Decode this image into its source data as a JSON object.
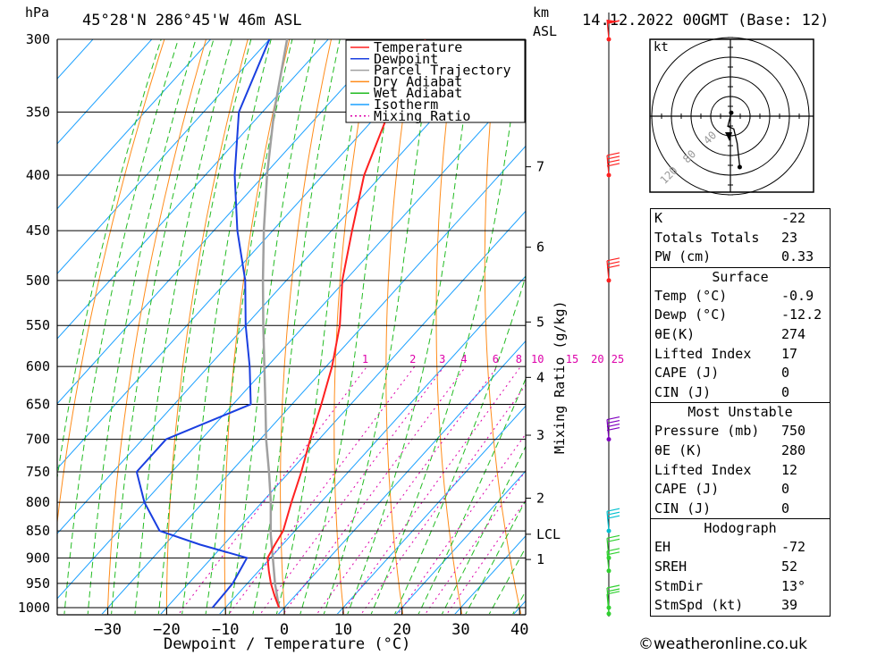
{
  "header": {
    "pressure_unit": "hPa",
    "location": "45°28'N 286°45'W 46m ASL",
    "height_unit": "km",
    "height_ref": "ASL",
    "datetime": "14.12.2022 00GMT (Base: 12)"
  },
  "footer": {
    "copyright": "©weatheronline.co.uk"
  },
  "colors": {
    "temperature": "#ff2020",
    "dewpoint": "#1a3fe0",
    "parcel": "#a0a0a0",
    "dry_adiabat": "#ff8c1a",
    "wet_adiabat": "#22bb22",
    "isotherm": "#1aa0ff",
    "mixing_ratio": "#dd00aa",
    "grid": "#000000",
    "wind_red": "#ff2020",
    "wind_purple": "#8000c0",
    "wind_cyan": "#00c0d0",
    "wind_green": "#30d030"
  },
  "chart_data": {
    "type": "skew-t",
    "xlabel": "Dewpoint / Temperature (°C)",
    "ylabel": "hPa",
    "x_ticks": [
      -30,
      -20,
      -10,
      0,
      10,
      20,
      30,
      40
    ],
    "pressure_levels": [
      300,
      350,
      400,
      450,
      500,
      550,
      600,
      650,
      700,
      750,
      800,
      850,
      900,
      950,
      1000
    ],
    "height_ticks": [
      {
        "label": "7",
        "pressure": 393
      },
      {
        "label": "6",
        "pressure": 466
      },
      {
        "label": "5",
        "pressure": 546
      },
      {
        "label": "4",
        "pressure": 614
      },
      {
        "label": "3",
        "pressure": 694
      },
      {
        "label": "2",
        "pressure": 793
      },
      {
        "label": "LCL",
        "pressure": 856
      },
      {
        "label": "1",
        "pressure": 903
      }
    ],
    "mixing_ratio_axis_label": "Mixing Ratio (g/kg)",
    "mixing_ratio_labels": [
      "1",
      "2",
      "3",
      "4",
      "6",
      "8",
      "10",
      "15",
      "20",
      "25"
    ],
    "mixing_ratio_values": [
      1,
      2,
      3,
      4,
      6,
      8,
      10,
      15,
      20,
      25
    ],
    "legend": [
      "Temperature",
      "Dewpoint",
      "Parcel Trajectory",
      "Dry Adiabat",
      "Wet Adiabat",
      "Isotherm",
      "Mixing Ratio"
    ],
    "temperature": {
      "name": "Temperature",
      "p": [
        1000,
        975,
        950,
        925,
        900,
        875,
        850,
        800,
        750,
        700,
        650,
        600,
        550,
        500,
        450,
        400,
        350,
        300
      ],
      "t": [
        -0.9,
        -3.5,
        -6.0,
        -8.3,
        -10.5,
        -11.3,
        -12.0,
        -15.0,
        -18.0,
        -21.5,
        -25.0,
        -29.0,
        -34.0,
        -40.5,
        -46.5,
        -53.0,
        -58.5,
        -63.5
      ]
    },
    "dewpoint": {
      "name": "Dewpoint",
      "p": [
        1000,
        950,
        900,
        875,
        850,
        800,
        750,
        700,
        650,
        600,
        550,
        500,
        450,
        400,
        350,
        300
      ],
      "t": [
        -12.2,
        -12.5,
        -14.0,
        -24.0,
        -33.0,
        -40.0,
        -46.0,
        -46.0,
        -37.0,
        -43.0,
        -50.0,
        -57.0,
        -66.0,
        -75.0,
        -84.0,
        -90.0
      ]
    },
    "parcel": {
      "name": "Parcel Trajectory",
      "p": [
        1000,
        950,
        900,
        856,
        800,
        750,
        700,
        650,
        600,
        550,
        500,
        450,
        400,
        350,
        300
      ],
      "t": [
        -0.9,
        -5.3,
        -9.6,
        -13.6,
        -18.5,
        -23.5,
        -29.0,
        -34.5,
        -40.5,
        -47.0,
        -54.0,
        -61.5,
        -69.5,
        -78.0,
        -87.0
      ]
    },
    "hodograph": {
      "unit_label": "kt",
      "ring_labels": [
        "40",
        "80",
        "120"
      ],
      "points": [
        {
          "u": 0.5,
          "v": 2.0
        },
        {
          "u": -1.5,
          "v": -6.0
        },
        {
          "u": 2.0,
          "v": -7.5
        },
        {
          "u": 4.0,
          "v": -16.0
        },
        {
          "u": 5.5,
          "v": -30.0
        }
      ]
    },
    "wind_barbs": [
      {
        "pressure": 300,
        "color": "wind_red",
        "flags": 1,
        "full": 1
      },
      {
        "pressure": 400,
        "color": "wind_red",
        "flags": 0,
        "full": 4
      },
      {
        "pressure": 500,
        "color": "wind_red",
        "flags": 0,
        "full": 3
      },
      {
        "pressure": 700,
        "color": "wind_purple",
        "flags": 0,
        "full": 4
      },
      {
        "pressure": 850,
        "color": "wind_cyan",
        "flags": 0,
        "full": 3
      },
      {
        "pressure": 900,
        "color": "wind_green",
        "flags": 0,
        "full": 2
      },
      {
        "pressure": 925,
        "color": "wind_green",
        "flags": 0,
        "full": 2
      },
      {
        "pressure": 1000,
        "color": "wind_green",
        "flags": 0,
        "full": 2
      },
      {
        "pressure": 1013,
        "color": "wind_green",
        "flags": 0,
        "full": 1
      }
    ]
  },
  "indices": {
    "basic": [
      {
        "label": "K",
        "value": "-22"
      },
      {
        "label": "Totals Totals",
        "value": "23"
      },
      {
        "label": "PW (cm)",
        "value": "0.33"
      }
    ],
    "surface": {
      "title": "Surface",
      "rows": [
        {
          "label": "Temp (°C)",
          "value": "-0.9"
        },
        {
          "label": "Dewp (°C)",
          "value": "-12.2"
        },
        {
          "label": "θE(K)",
          "value": "274"
        },
        {
          "label": "Lifted Index",
          "value": "17"
        },
        {
          "label": "CAPE (J)",
          "value": "0"
        },
        {
          "label": "CIN (J)",
          "value": "0"
        }
      ]
    },
    "most_unstable": {
      "title": "Most Unstable",
      "rows": [
        {
          "label": "Pressure (mb)",
          "value": "750"
        },
        {
          "label": "θE (K)",
          "value": "280"
        },
        {
          "label": "Lifted Index",
          "value": "12"
        },
        {
          "label": "CAPE (J)",
          "value": "0"
        },
        {
          "label": "CIN (J)",
          "value": "0"
        }
      ]
    },
    "hodograph": {
      "title": "Hodograph",
      "rows": [
        {
          "label": "EH",
          "value": "-72"
        },
        {
          "label": "SREH",
          "value": "52"
        },
        {
          "label": "StmDir",
          "value": "13°"
        },
        {
          "label": "StmSpd (kt)",
          "value": "39"
        }
      ]
    }
  }
}
